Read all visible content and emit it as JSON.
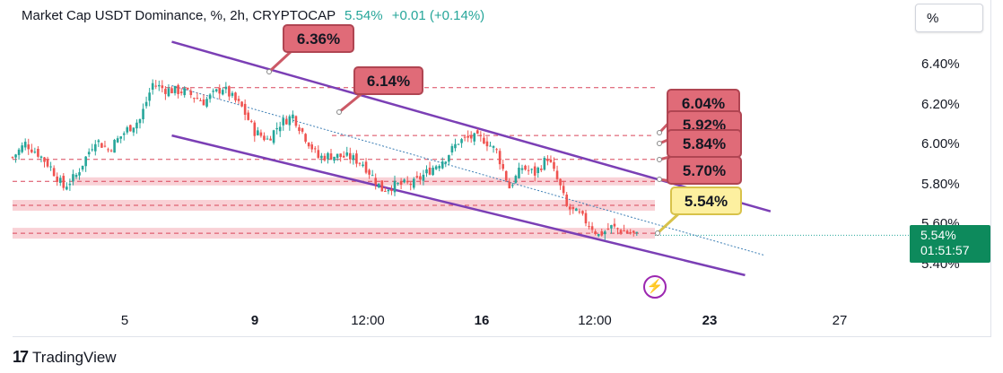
{
  "header": {
    "title": "Market Cap USDT Dominance, %, 2h, CRYPTOCAP",
    "price": "5.54%",
    "change": "+0.01 (+0.14%)"
  },
  "scale_button": {
    "label": "%"
  },
  "last_price_tag": {
    "value": "5.54%",
    "countdown": "01:51:57"
  },
  "footer": {
    "logo": "17",
    "brand": "TradingView"
  },
  "colors": {
    "up": "#26a69a",
    "down": "#ef5350",
    "channel": "#7b3fb5",
    "zone": "#f8c9cf",
    "label_red": "#e06b78",
    "label_yellow": "#fdf0a0"
  },
  "icons": {
    "alert": "lightning-bolt-icon"
  },
  "chart_data": {
    "type": "candlestick",
    "title": "Market Cap USDT Dominance, %, 2h, CRYPTOCAP",
    "x_ticks": [
      "5",
      "9",
      "12:00",
      "16",
      "12:00",
      "23",
      "27"
    ],
    "y_ticks": [
      "6.40%",
      "6.20%",
      "6.00%",
      "5.80%",
      "5.60%",
      "5.40%"
    ],
    "ylim": [
      5.33,
      6.62
    ],
    "close_path": [
      [
        0,
        5.93
      ],
      [
        4,
        6.0
      ],
      [
        8,
        5.95
      ],
      [
        12,
        5.88
      ],
      [
        16,
        5.78
      ],
      [
        20,
        5.84
      ],
      [
        26,
        6.02
      ],
      [
        30,
        5.97
      ],
      [
        36,
        6.07
      ],
      [
        40,
        6.12
      ],
      [
        44,
        6.3
      ],
      [
        48,
        6.27
      ],
      [
        54,
        6.26
      ],
      [
        60,
        6.21
      ],
      [
        66,
        6.28
      ],
      [
        72,
        6.18
      ],
      [
        76,
        6.06
      ],
      [
        80,
        6.02
      ],
      [
        84,
        6.1
      ],
      [
        88,
        6.14
      ],
      [
        92,
        6.03
      ],
      [
        96,
        5.93
      ],
      [
        100,
        5.94
      ],
      [
        106,
        5.93
      ],
      [
        110,
        5.9
      ],
      [
        116,
        5.77
      ],
      [
        120,
        5.79
      ],
      [
        126,
        5.8
      ],
      [
        132,
        5.88
      ],
      [
        136,
        5.93
      ],
      [
        140,
        6.01
      ],
      [
        144,
        6.03
      ],
      [
        148,
        6.02
      ],
      [
        152,
        5.96
      ],
      [
        156,
        5.78
      ],
      [
        160,
        5.88
      ],
      [
        164,
        5.85
      ],
      [
        168,
        5.93
      ],
      [
        172,
        5.78
      ],
      [
        174,
        5.68
      ],
      [
        178,
        5.64
      ],
      [
        182,
        5.58
      ],
      [
        184,
        5.54
      ],
      [
        188,
        5.58
      ],
      [
        192,
        5.56
      ],
      [
        196,
        5.54
      ]
    ],
    "price_labels": [
      "6.36%",
      "6.14%",
      "6.04%",
      "5.92%",
      "5.84%",
      "5.70%",
      "5.54%"
    ],
    "levels": [
      6.28,
      6.04,
      5.92,
      5.81,
      5.69,
      5.55
    ],
    "channel": {
      "upper": [
        [
          50,
          6.51
        ],
        [
          238,
          5.66
        ]
      ],
      "lower": [
        [
          50,
          6.04
        ],
        [
          230,
          5.34
        ]
      ],
      "mid": [
        [
          50,
          6.29
        ],
        [
          236,
          5.44
        ]
      ]
    }
  }
}
